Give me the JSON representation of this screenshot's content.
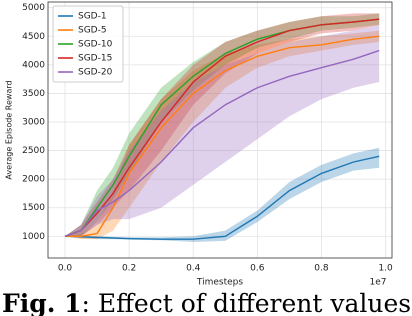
{
  "chart_data": {
    "type": "line",
    "x_label": "Timesteps",
    "y_label": "Average Episode Reward",
    "x_offset_label": "1e7",
    "x": [
      0,
      0.05,
      0.1,
      0.15,
      0.2,
      0.3,
      0.4,
      0.5,
      0.6,
      0.7,
      0.8,
      0.9,
      0.98
    ],
    "series": [
      {
        "name": "SGD-1",
        "color": "#1f77b4",
        "values": [
          1000,
          990,
          980,
          970,
          960,
          950,
          950,
          1000,
          1350,
          1800,
          2100,
          2300,
          2400
        ],
        "lower": [
          1000,
          970,
          950,
          950,
          940,
          930,
          900,
          920,
          1250,
          1650,
          1950,
          2150,
          2200
        ],
        "upper": [
          1000,
          1010,
          1000,
          990,
          980,
          980,
          1000,
          1100,
          1450,
          1950,
          2250,
          2450,
          2550
        ]
      },
      {
        "name": "SGD-5",
        "color": "#ff7f0e",
        "values": [
          1000,
          1000,
          1050,
          1500,
          2100,
          2900,
          3500,
          3900,
          4150,
          4300,
          4350,
          4450,
          4500
        ],
        "lower": [
          1000,
          950,
          950,
          1100,
          1500,
          2300,
          3000,
          3600,
          3950,
          4150,
          4250,
          4350,
          4400
        ],
        "upper": [
          1000,
          1050,
          1200,
          1800,
          2600,
          3400,
          3900,
          4200,
          4350,
          4450,
          4500,
          4550,
          4600
        ]
      },
      {
        "name": "SGD-10",
        "color": "#2ca02c",
        "values": [
          1000,
          1100,
          1500,
          1900,
          2400,
          3300,
          3800,
          4200,
          4450,
          4600,
          4700,
          4750,
          4800
        ],
        "lower": [
          1000,
          1000,
          1250,
          1650,
          2100,
          3000,
          3550,
          4000,
          4300,
          4450,
          4600,
          4650,
          4700
        ],
        "upper": [
          1000,
          1200,
          1800,
          2200,
          2800,
          3600,
          4050,
          4400,
          4600,
          4750,
          4850,
          4850,
          4900
        ]
      },
      {
        "name": "SGD-15",
        "color": "#d62728",
        "values": [
          1000,
          1100,
          1400,
          1750,
          2200,
          3000,
          3700,
          4150,
          4400,
          4600,
          4700,
          4750,
          4800
        ],
        "lower": [
          1000,
          1000,
          1200,
          1500,
          1800,
          2500,
          3300,
          3850,
          4200,
          4400,
          4550,
          4600,
          4700
        ],
        "upper": [
          1000,
          1200,
          1600,
          2000,
          2600,
          3400,
          4000,
          4400,
          4600,
          4750,
          4850,
          4900,
          4900
        ]
      },
      {
        "name": "SGD-20",
        "color": "#9467bd",
        "values": [
          1000,
          1100,
          1450,
          1600,
          1800,
          2300,
          2900,
          3300,
          3600,
          3800,
          3950,
          4100,
          4250
        ],
        "lower": [
          1000,
          1000,
          1200,
          1300,
          1300,
          1500,
          1900,
          2300,
          2700,
          3100,
          3400,
          3600,
          3700
        ],
        "upper": [
          1000,
          1200,
          1700,
          2000,
          2500,
          3200,
          3700,
          4000,
          4200,
          4400,
          4500,
          4600,
          4700
        ]
      }
    ],
    "xlim": [
      -0.053,
      1.02
    ],
    "ylim": [
      620,
      5100
    ],
    "xticks": [
      {
        "value": 0,
        "label": "0.0"
      },
      0.2,
      0.4,
      0.6,
      0.8,
      {
        "value": 1,
        "label": "1.0"
      }
    ],
    "yticks": [
      1000,
      1500,
      2000,
      2500,
      3000,
      3500,
      4000,
      4500,
      5000
    ],
    "grid": true,
    "legend": "upper left"
  },
  "caption": {
    "label": "Fig. 1",
    "text": ": Effect of different values of"
  }
}
